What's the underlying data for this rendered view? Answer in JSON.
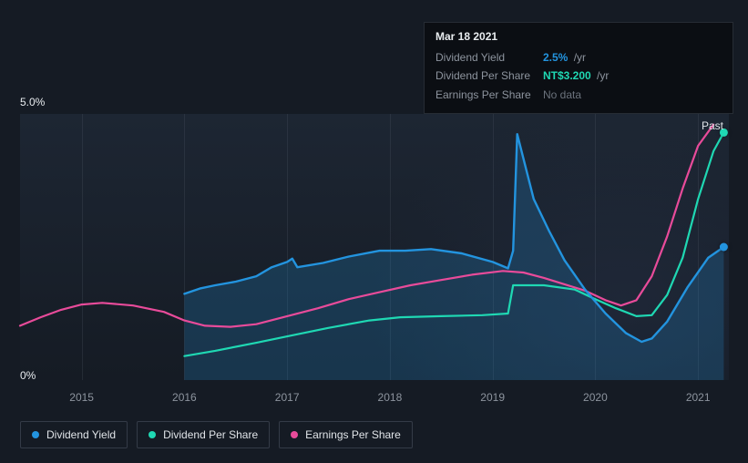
{
  "chart": {
    "type": "line",
    "background_gradient": [
      "#1d2633",
      "#151b24"
    ],
    "text_color": "#e8ecef",
    "muted_color": "#8d949e",
    "grid_color": "rgba(90,100,115,0.22)",
    "past_label": "Past",
    "y": {
      "min": 0,
      "max": 5.0,
      "top_label": "5.0%",
      "bottom_label": "0%"
    },
    "x": {
      "min": 2014.4,
      "max": 2021.3,
      "ticks": [
        2015,
        2016,
        2017,
        2018,
        2019,
        2020,
        2021
      ]
    },
    "series": {
      "dividend_yield": {
        "label": "Dividend Yield",
        "color": "#2394df",
        "fill": "rgba(35,148,223,0.22)",
        "stroke_width": 2.4,
        "end_dot": true,
        "data": [
          [
            2016.0,
            1.62
          ],
          [
            2016.15,
            1.72
          ],
          [
            2016.3,
            1.78
          ],
          [
            2016.5,
            1.85
          ],
          [
            2016.7,
            1.95
          ],
          [
            2016.85,
            2.12
          ],
          [
            2017.0,
            2.22
          ],
          [
            2017.05,
            2.28
          ],
          [
            2017.1,
            2.12
          ],
          [
            2017.35,
            2.2
          ],
          [
            2017.6,
            2.32
          ],
          [
            2017.9,
            2.43
          ],
          [
            2018.15,
            2.43
          ],
          [
            2018.4,
            2.46
          ],
          [
            2018.7,
            2.38
          ],
          [
            2019.0,
            2.22
          ],
          [
            2019.15,
            2.1
          ],
          [
            2019.2,
            2.43
          ],
          [
            2019.24,
            4.62
          ],
          [
            2019.4,
            3.4
          ],
          [
            2019.55,
            2.8
          ],
          [
            2019.7,
            2.25
          ],
          [
            2019.9,
            1.7
          ],
          [
            2020.1,
            1.25
          ],
          [
            2020.3,
            0.88
          ],
          [
            2020.45,
            0.72
          ],
          [
            2020.55,
            0.78
          ],
          [
            2020.7,
            1.1
          ],
          [
            2020.9,
            1.75
          ],
          [
            2021.1,
            2.3
          ],
          [
            2021.25,
            2.5
          ]
        ]
      },
      "dividend_per_share": {
        "label": "Dividend Per Share",
        "color": "#1fd8b3",
        "stroke_width": 2.2,
        "end_dot": true,
        "data": [
          [
            2016.0,
            0.45
          ],
          [
            2016.3,
            0.55
          ],
          [
            2016.7,
            0.7
          ],
          [
            2017.0,
            0.82
          ],
          [
            2017.4,
            0.98
          ],
          [
            2017.8,
            1.12
          ],
          [
            2018.1,
            1.18
          ],
          [
            2018.5,
            1.2
          ],
          [
            2018.9,
            1.22
          ],
          [
            2019.15,
            1.25
          ],
          [
            2019.2,
            1.78
          ],
          [
            2019.5,
            1.78
          ],
          [
            2019.8,
            1.7
          ],
          [
            2020.0,
            1.52
          ],
          [
            2020.2,
            1.35
          ],
          [
            2020.4,
            1.2
          ],
          [
            2020.55,
            1.22
          ],
          [
            2020.7,
            1.6
          ],
          [
            2020.85,
            2.3
          ],
          [
            2021.0,
            3.4
          ],
          [
            2021.15,
            4.3
          ],
          [
            2021.25,
            4.65
          ]
        ]
      },
      "earnings_per_share": {
        "label": "Earnings Per Share",
        "color": "#e84b9a",
        "stroke_width": 2.2,
        "end_dot": false,
        "data": [
          [
            2014.4,
            1.02
          ],
          [
            2014.6,
            1.18
          ],
          [
            2014.8,
            1.32
          ],
          [
            2015.0,
            1.42
          ],
          [
            2015.2,
            1.45
          ],
          [
            2015.5,
            1.4
          ],
          [
            2015.8,
            1.28
          ],
          [
            2016.0,
            1.12
          ],
          [
            2016.2,
            1.02
          ],
          [
            2016.45,
            1.0
          ],
          [
            2016.7,
            1.05
          ],
          [
            2017.0,
            1.2
          ],
          [
            2017.3,
            1.35
          ],
          [
            2017.6,
            1.52
          ],
          [
            2017.9,
            1.65
          ],
          [
            2018.2,
            1.78
          ],
          [
            2018.5,
            1.88
          ],
          [
            2018.8,
            1.98
          ],
          [
            2019.1,
            2.05
          ],
          [
            2019.3,
            2.02
          ],
          [
            2019.5,
            1.92
          ],
          [
            2019.7,
            1.8
          ],
          [
            2019.9,
            1.68
          ],
          [
            2020.1,
            1.5
          ],
          [
            2020.25,
            1.4
          ],
          [
            2020.4,
            1.5
          ],
          [
            2020.55,
            1.95
          ],
          [
            2020.7,
            2.7
          ],
          [
            2020.85,
            3.6
          ],
          [
            2021.0,
            4.4
          ],
          [
            2021.15,
            4.8
          ]
        ]
      }
    }
  },
  "tooltip": {
    "date": "Mar 18 2021",
    "rows": [
      {
        "label": "Dividend Yield",
        "value": "2.5%",
        "unit": "/yr",
        "color": "#2394df"
      },
      {
        "label": "Dividend Per Share",
        "value": "NT$3.200",
        "unit": "/yr",
        "color": "#1fd8b3"
      },
      {
        "label": "Earnings Per Share",
        "no_data": "No data"
      }
    ]
  },
  "legend": {
    "border_color": "rgba(90,100,115,0.45)",
    "items": [
      {
        "label": "Dividend Yield",
        "color": "#2394df"
      },
      {
        "label": "Dividend Per Share",
        "color": "#1fd8b3"
      },
      {
        "label": "Earnings Per Share",
        "color": "#e84b9a"
      }
    ]
  }
}
